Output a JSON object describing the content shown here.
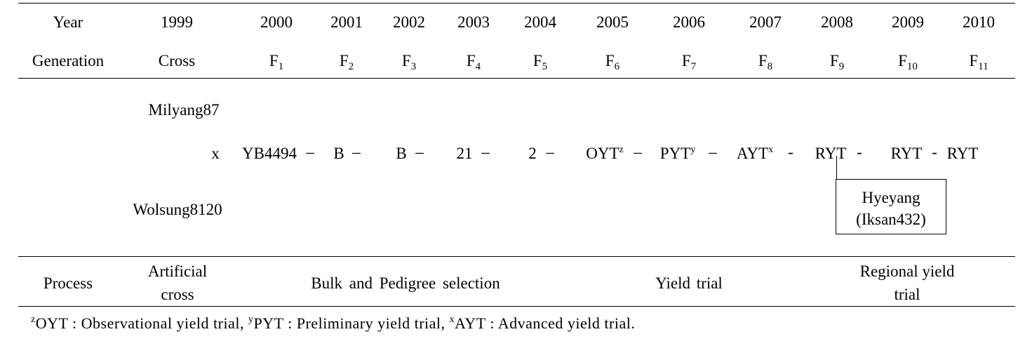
{
  "header": {
    "year_label": "Year",
    "generation_label": "Generation",
    "years": [
      "1999",
      "2000",
      "2001",
      "2002",
      "2003",
      "2004",
      "2005",
      "2006",
      "2007",
      "2008",
      "2009",
      "2010"
    ],
    "cross_label": "Cross",
    "generations": [
      {
        "base": "F",
        "sub": "1"
      },
      {
        "base": "F",
        "sub": "2"
      },
      {
        "base": "F",
        "sub": "3"
      },
      {
        "base": "F",
        "sub": "4"
      },
      {
        "base": "F",
        "sub": "5"
      },
      {
        "base": "F",
        "sub": "6"
      },
      {
        "base": "F",
        "sub": "7"
      },
      {
        "base": "F",
        "sub": "8"
      },
      {
        "base": "F",
        "sub": "9"
      },
      {
        "base": "F",
        "sub": "10"
      },
      {
        "base": "F",
        "sub": "11"
      }
    ]
  },
  "pedigree": {
    "parent_female": "Milyang87",
    "parent_male": "Wolsung8120",
    "cross_symbol": "x",
    "steps": [
      {
        "text": "YB4494",
        "sup": "",
        "sep": "–"
      },
      {
        "text": "B",
        "sup": "",
        "sep": "–"
      },
      {
        "text": "B",
        "sup": "",
        "sep": "–"
      },
      {
        "text": "21",
        "sup": "",
        "sep": "–"
      },
      {
        "text": "2",
        "sup": "",
        "sep": "–"
      },
      {
        "text": "OYT",
        "sup": "z",
        "sep": "–"
      },
      {
        "text": "PYT",
        "sup": "y",
        "sep": "–"
      },
      {
        "text": "AYT",
        "sup": "x",
        "sep": "-"
      },
      {
        "text": "RYT",
        "sup": "",
        "sep": "-"
      },
      {
        "text": "RYT",
        "sup": "",
        "sep": "-"
      },
      {
        "text": "RYT",
        "sup": "",
        "sep": ""
      }
    ],
    "cultivar_name": "Hyeyang",
    "cultivar_line": "(Iksan432)"
  },
  "process": {
    "label": "Process",
    "artificial_cross_1": "Artificial",
    "artificial_cross_2": "cross",
    "bulk": "Bulk and Pedigree selection",
    "yield": "Yield trial",
    "regional_1": "Regional yield",
    "regional_2": "trial"
  },
  "footnote": {
    "z_mark": "z",
    "z_text": "OYT : Observational yield trial, ",
    "y_mark": "y",
    "y_text": "PYT : Preliminary yield trial, ",
    "x_mark": "x",
    "x_text": "AYT : Advanced yield trial."
  }
}
